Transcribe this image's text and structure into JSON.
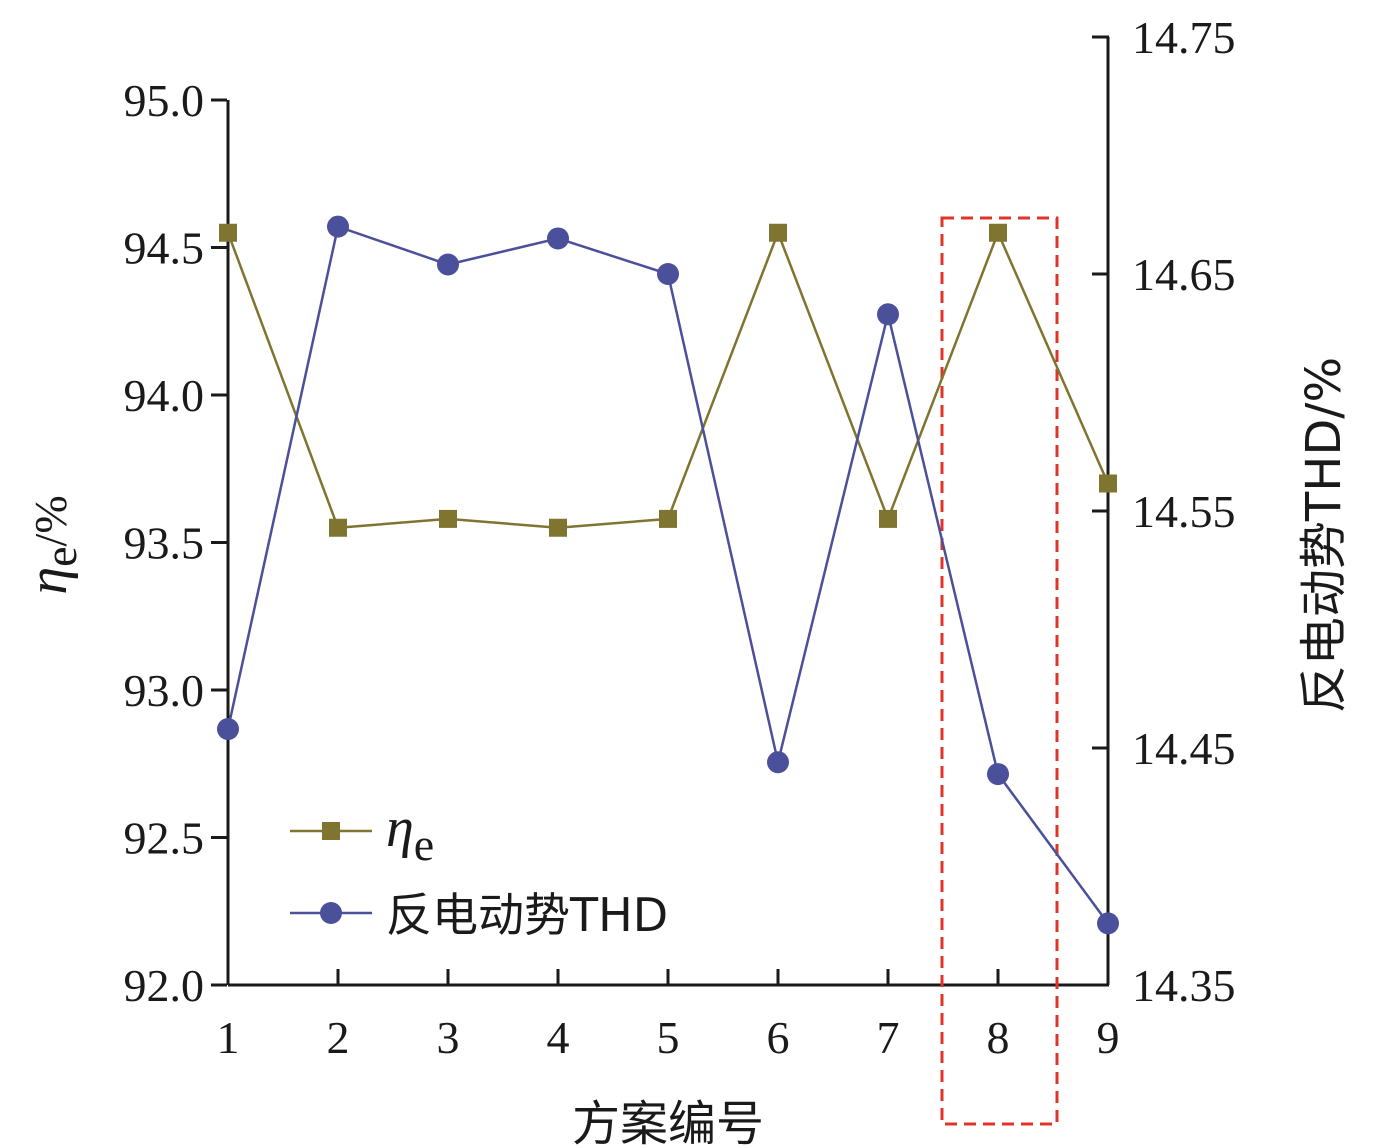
{
  "chart_data": {
    "type": "line",
    "xlabel": "方案编号",
    "x": [
      1,
      2,
      3,
      4,
      5,
      6,
      7,
      8,
      9
    ],
    "x_ticks": [
      "1",
      "2",
      "3",
      "4",
      "5",
      "6",
      "7",
      "8",
      "9"
    ],
    "y_left": {
      "label_symbol": "η",
      "label_sub": "e",
      "label_unit": "/%",
      "ylim": [
        92.0,
        95.0
      ],
      "ticks": [
        "92.0",
        "92.5",
        "93.0",
        "93.5",
        "94.0",
        "94.5",
        "95.0"
      ]
    },
    "y_right": {
      "label": "反电动势THD/%",
      "ylim": [
        14.35,
        14.75
      ],
      "ticks": [
        "14.35",
        "14.45",
        "14.55",
        "14.65",
        "14.75"
      ]
    },
    "series": [
      {
        "name_symbol": "η",
        "name_sub": "e",
        "axis": "left",
        "marker": "square",
        "color": "#7f7530",
        "values": [
          94.55,
          93.55,
          93.58,
          93.55,
          93.58,
          94.55,
          93.58,
          94.55,
          93.7
        ]
      },
      {
        "name": "反电动势THD",
        "axis": "right",
        "marker": "circle",
        "color": "#4b509a",
        "values": [
          14.458,
          14.67,
          14.654,
          14.665,
          14.65,
          14.444,
          14.633,
          14.439,
          14.376
        ]
      }
    ],
    "highlight": {
      "x": 8,
      "color": "#e0342a",
      "style": "dashed"
    },
    "grid": false,
    "legend": "bottom-left"
  }
}
